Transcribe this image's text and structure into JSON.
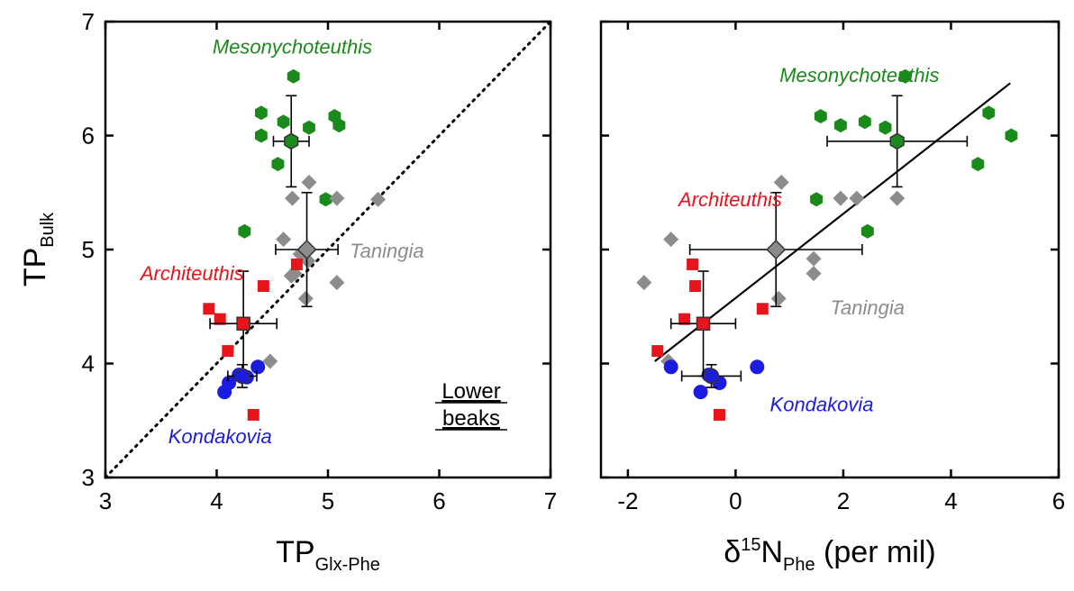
{
  "chart_data": [
    {
      "id": "left",
      "type": "scatter",
      "xlim": [
        3,
        7
      ],
      "ylim": [
        3,
        7
      ],
      "xticks": [
        3,
        4,
        5,
        6,
        7
      ],
      "yticks": [
        3,
        4,
        5,
        6,
        7
      ],
      "xlabel": {
        "main": "TP",
        "sub": "Glx-Phe"
      },
      "ylabel": {
        "main": "TP",
        "sub": "Bulk"
      },
      "reference_line": {
        "style": "dotted",
        "from": [
          3,
          3
        ],
        "to": [
          7,
          7
        ]
      },
      "note_lines": [
        "Lower",
        "beaks"
      ],
      "species_labels": [
        {
          "text": "Mesonychoteuthis",
          "color": "#1a8a1a",
          "x": 4.68,
          "y": 6.72
        },
        {
          "text": "Architeuthis",
          "color": "#e8141c",
          "x": 3.78,
          "y": 4.73
        },
        {
          "text": "Taningia",
          "color": "#8c8c8c",
          "x": 5.53,
          "y": 4.93
        },
        {
          "text": "Kondakovia",
          "color": "#1c1ce0",
          "x": 4.03,
          "y": 3.3
        }
      ],
      "series": [
        {
          "name": "Mesonychoteuthis",
          "marker": "hexagon",
          "color": "#1a8a1a",
          "points": [
            [
              4.69,
              6.52
            ],
            [
              4.4,
              6.2
            ],
            [
              4.6,
              6.12
            ],
            [
              4.83,
              6.07
            ],
            [
              5.06,
              6.17
            ],
            [
              5.1,
              6.09
            ],
            [
              4.4,
              6.0
            ],
            [
              4.55,
              5.75
            ],
            [
              4.98,
              5.44
            ],
            [
              4.25,
              5.16
            ]
          ],
          "mean": [
            4.67,
            5.95
          ],
          "xerr": 0.16,
          "yerr": 0.4
        },
        {
          "name": "Taningia",
          "marker": "diamond",
          "color": "#8c8c8c",
          "points": [
            [
              5.45,
              5.44
            ],
            [
              4.83,
              5.59
            ],
            [
              4.68,
              5.45
            ],
            [
              5.08,
              5.45
            ],
            [
              4.6,
              5.09
            ],
            [
              4.75,
              4.96
            ],
            [
              4.82,
              4.9
            ],
            [
              4.7,
              4.79
            ],
            [
              4.67,
              4.77
            ],
            [
              5.08,
              4.71
            ],
            [
              4.8,
              4.57
            ],
            [
              4.48,
              4.02
            ]
          ],
          "mean": [
            4.81,
            5.0
          ],
          "xerr": 0.28,
          "yerr": 0.5
        },
        {
          "name": "Architeuthis",
          "marker": "square",
          "color": "#e8141c",
          "points": [
            [
              3.93,
              4.48
            ],
            [
              4.03,
              4.39
            ],
            [
              4.42,
              4.68
            ],
            [
              4.72,
              4.87
            ],
            [
              4.1,
              4.11
            ],
            [
              4.33,
              3.55
            ]
          ],
          "mean": [
            4.24,
            4.35
          ],
          "xerr": 0.3,
          "yerr": 0.46
        },
        {
          "name": "Kondakovia",
          "marker": "circle",
          "color": "#1c1ce0",
          "points": [
            [
              4.37,
              3.97
            ],
            [
              4.2,
              3.9
            ],
            [
              4.27,
              3.88
            ],
            [
              4.11,
              3.83
            ],
            [
              4.07,
              3.75
            ]
          ],
          "mean": [
            4.23,
            3.89
          ],
          "xerr": 0.13,
          "yerr": 0.1
        }
      ]
    },
    {
      "id": "right",
      "type": "scatter",
      "xlim": [
        -2.5,
        6
      ],
      "ylim": [
        3,
        7
      ],
      "xticks": [
        -2,
        0,
        2,
        4,
        6
      ],
      "yticks": [
        3,
        4,
        5,
        6,
        7
      ],
      "xlabel": {
        "prefix": "δ",
        "sup": "15",
        "main": "N",
        "sub": "Phe",
        "suffix": " (per mil)"
      },
      "regression_line": {
        "style": "solid",
        "from": [
          -1.5,
          4.02
        ],
        "to": [
          5.1,
          6.46
        ]
      },
      "species_labels": [
        {
          "text": "Mesonychoteuthis",
          "color": "#1a8a1a",
          "x": 2.3,
          "y": 6.47
        },
        {
          "text": "Architeuthis",
          "color": "#e8141c",
          "x": -0.1,
          "y": 5.38
        },
        {
          "text": "Taningia",
          "color": "#8c8c8c",
          "x": 2.45,
          "y": 4.43
        },
        {
          "text": "Kondakovia",
          "color": "#1c1ce0",
          "x": 1.6,
          "y": 3.58
        }
      ],
      "series": [
        {
          "name": "Mesonychoteuthis",
          "marker": "hexagon",
          "color": "#1a8a1a",
          "points": [
            [
              3.15,
              6.52
            ],
            [
              4.7,
              6.2
            ],
            [
              1.58,
              6.17
            ],
            [
              2.4,
              6.12
            ],
            [
              1.95,
              6.09
            ],
            [
              2.78,
              6.07
            ],
            [
              5.12,
              6.0
            ],
            [
              4.5,
              5.75
            ],
            [
              1.5,
              5.44
            ],
            [
              2.45,
              5.16
            ]
          ],
          "mean": [
            3.0,
            5.95
          ],
          "xerr": 1.3,
          "yerr": 0.4
        },
        {
          "name": "Taningia",
          "marker": "diamond",
          "color": "#8c8c8c",
          "points": [
            [
              0.85,
              5.59
            ],
            [
              1.95,
              5.45
            ],
            [
              2.25,
              5.45
            ],
            [
              3.0,
              5.45
            ],
            [
              -1.2,
              5.09
            ],
            [
              1.45,
              4.92
            ],
            [
              1.45,
              4.79
            ],
            [
              -1.7,
              4.71
            ],
            [
              0.8,
              4.57
            ],
            [
              -1.25,
              4.02
            ]
          ],
          "mean": [
            0.75,
            5.0
          ],
          "xerr": 1.6,
          "yerr": 0.5
        },
        {
          "name": "Architeuthis",
          "marker": "square",
          "color": "#e8141c",
          "points": [
            [
              -0.8,
              4.87
            ],
            [
              -0.75,
              4.68
            ],
            [
              0.5,
              4.48
            ],
            [
              -0.95,
              4.39
            ],
            [
              -1.45,
              4.11
            ],
            [
              -0.3,
              3.55
            ]
          ],
          "mean": [
            -0.6,
            4.35
          ],
          "xerr": 0.6,
          "yerr": 0.46
        },
        {
          "name": "Kondakovia",
          "marker": "circle",
          "color": "#1c1ce0",
          "points": [
            [
              0.4,
              3.97
            ],
            [
              -1.2,
              3.97
            ],
            [
              -0.5,
              3.9
            ],
            [
              -0.3,
              3.83
            ],
            [
              -0.65,
              3.75
            ]
          ],
          "mean": [
            -0.45,
            3.89
          ],
          "xerr": 0.55,
          "yerr": 0.1
        }
      ]
    }
  ]
}
